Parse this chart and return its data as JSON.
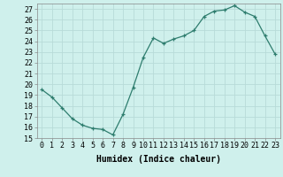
{
  "xlabel": "Humidex (Indice chaleur)",
  "x": [
    0,
    1,
    2,
    3,
    4,
    5,
    6,
    7,
    8,
    9,
    10,
    11,
    12,
    13,
    14,
    15,
    16,
    17,
    18,
    19,
    20,
    21,
    22,
    23
  ],
  "y": [
    19.5,
    18.8,
    17.8,
    16.8,
    16.2,
    15.9,
    15.8,
    15.3,
    17.2,
    19.7,
    22.5,
    24.3,
    23.8,
    24.2,
    24.5,
    25.0,
    26.3,
    26.8,
    26.9,
    27.3,
    26.7,
    26.3,
    24.5,
    22.8
  ],
  "ylim": [
    15,
    27.5
  ],
  "yticks": [
    15,
    16,
    17,
    18,
    19,
    20,
    21,
    22,
    23,
    24,
    25,
    26,
    27
  ],
  "xticks": [
    0,
    1,
    2,
    3,
    4,
    5,
    6,
    7,
    8,
    9,
    10,
    11,
    12,
    13,
    14,
    15,
    16,
    17,
    18,
    19,
    20,
    21,
    22,
    23
  ],
  "line_color": "#2e7d6e",
  "marker": "+",
  "bg_color": "#cff0ec",
  "grid_color": "#b8dbd8",
  "tick_fontsize": 6,
  "label_fontsize": 7
}
